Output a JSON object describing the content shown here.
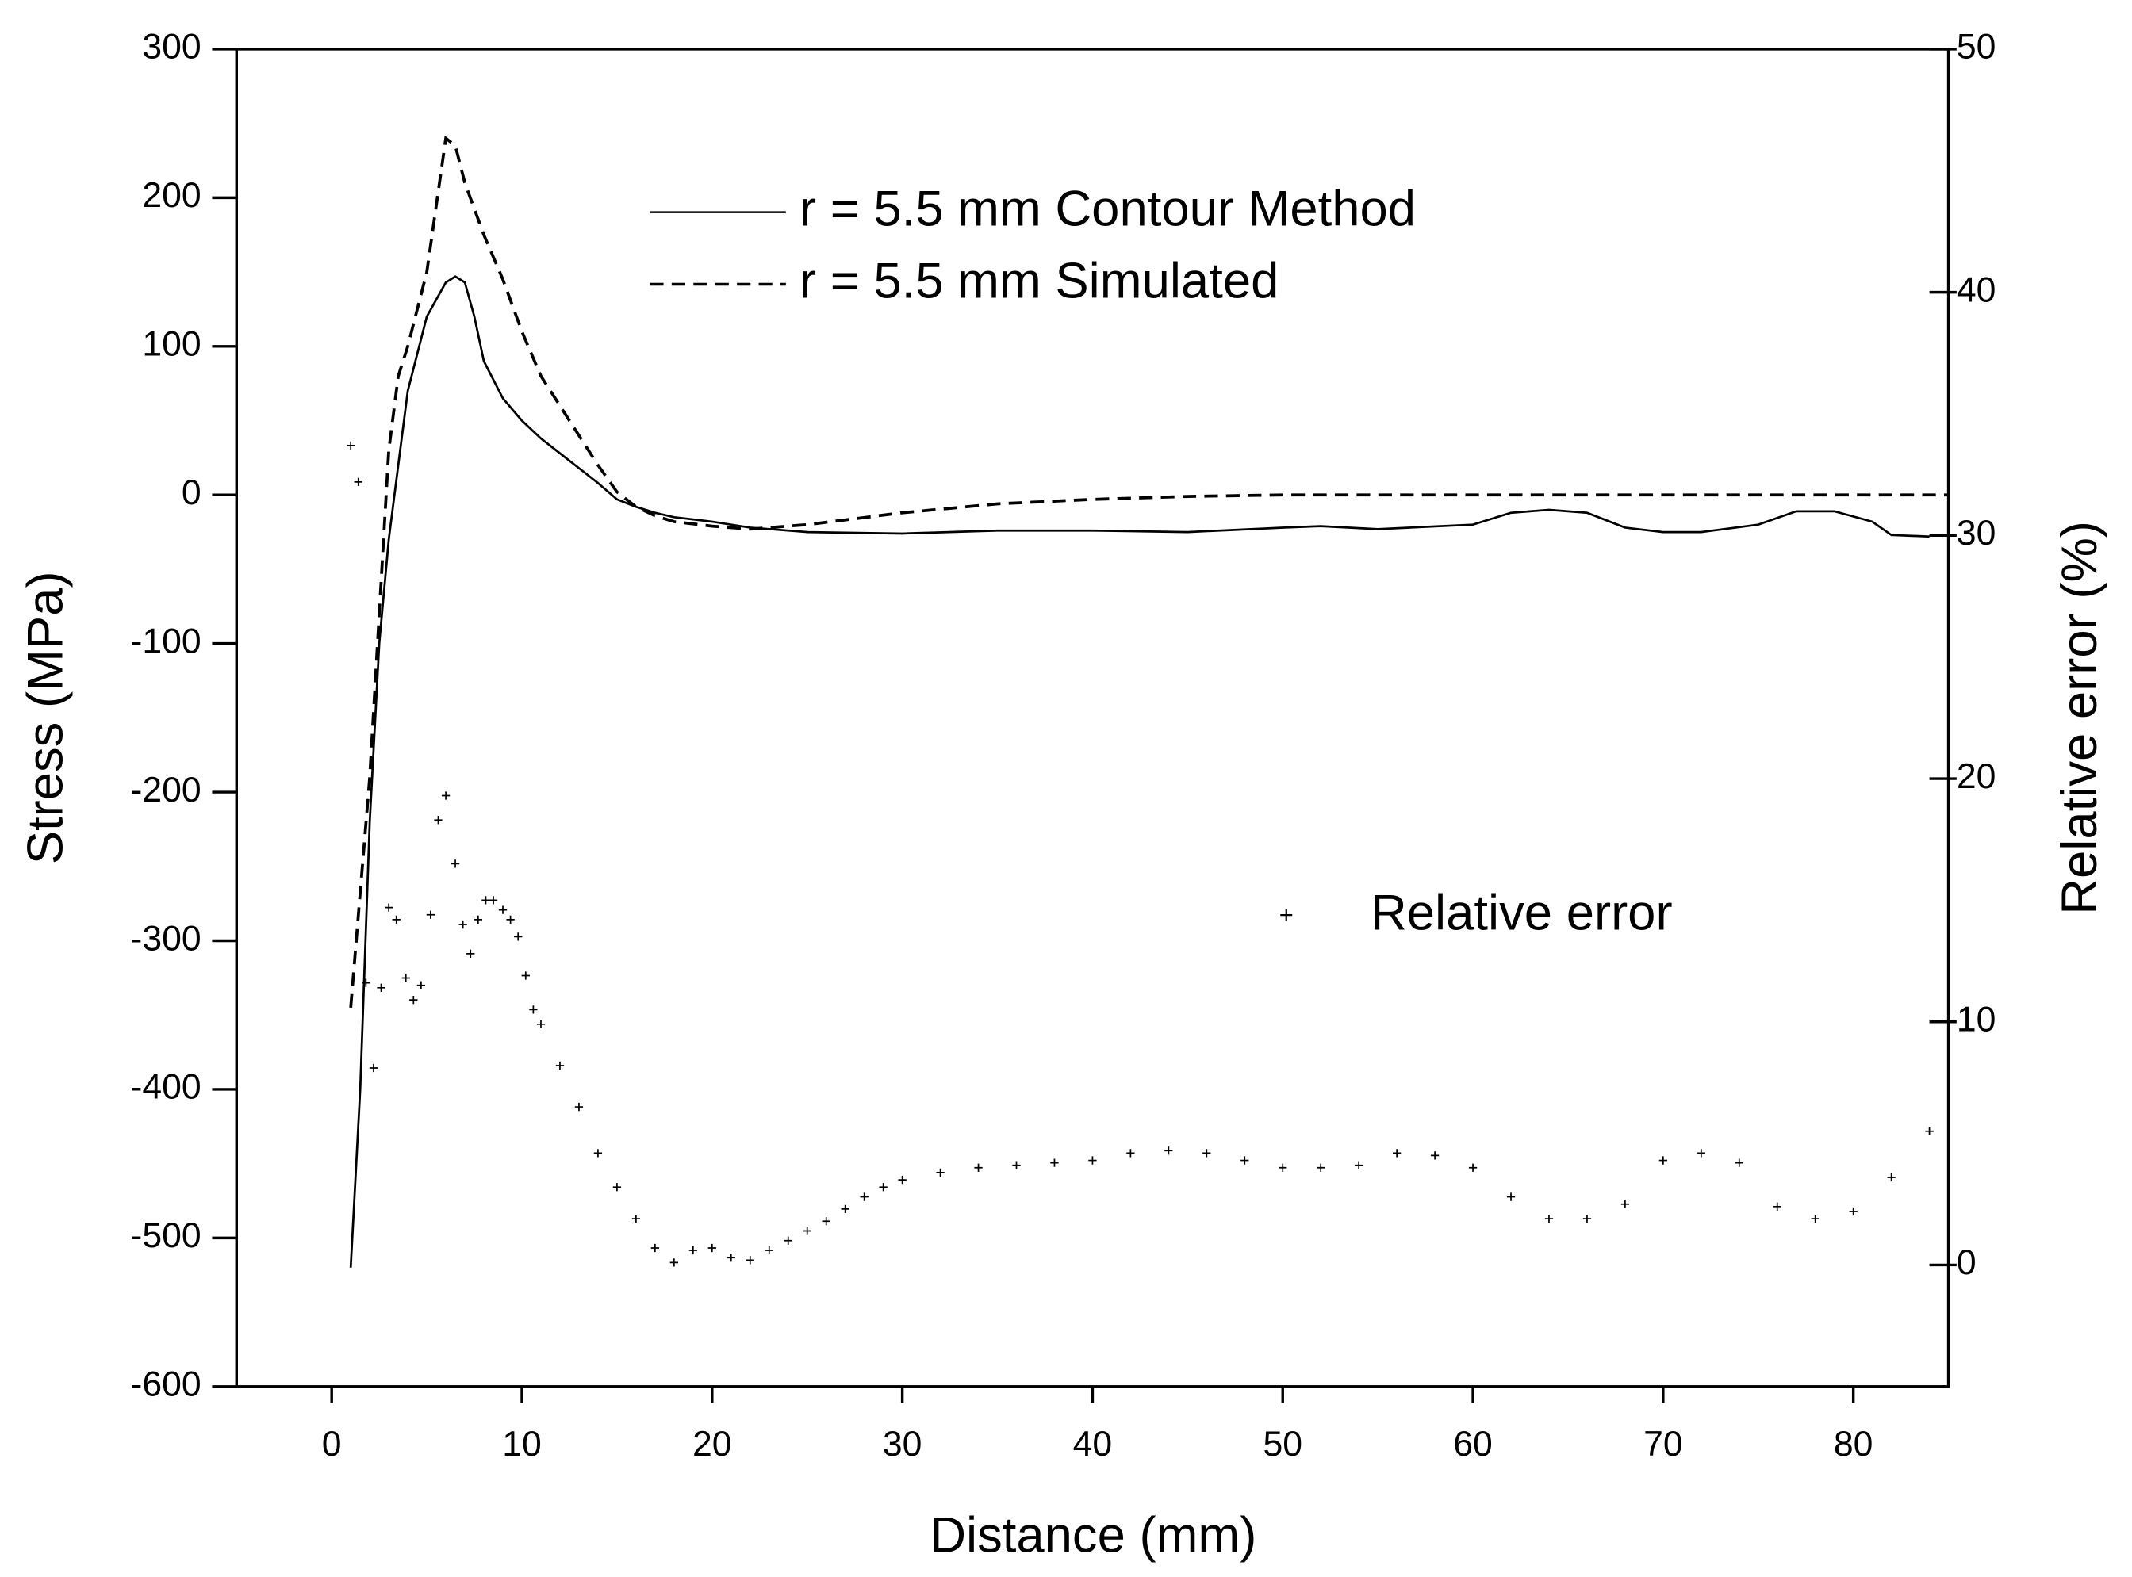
{
  "chart_data": {
    "type": "line",
    "x_label": "Distance (mm)",
    "y_label": "Stress (MPa)",
    "y2_label": "Relative error (%)",
    "xlim": [
      -5,
      85
    ],
    "xticks": [
      0,
      10,
      20,
      30,
      40,
      50,
      60,
      70,
      80
    ],
    "ylim": [
      -600,
      300
    ],
    "yticks": [
      -600,
      -500,
      -400,
      -300,
      -200,
      -100,
      0,
      100,
      200,
      300
    ],
    "y2lim": [
      -5,
      50
    ],
    "y2ticks": [
      0,
      10,
      20,
      30,
      40,
      50
    ],
    "series": [
      {
        "name": "r = 5.5 mm Contour Method",
        "color": "#000000",
        "style": "solid",
        "x": [
          1,
          1.5,
          2,
          2.5,
          3,
          3.5,
          4,
          5,
          6,
          6.5,
          7,
          7.5,
          8,
          9,
          10,
          11,
          12,
          13,
          14,
          15,
          16,
          17,
          18,
          20,
          22,
          25,
          30,
          35,
          40,
          45,
          50,
          52,
          55,
          60,
          62,
          64,
          66,
          68,
          70,
          72,
          75,
          77,
          79,
          81,
          82,
          84
        ],
        "values": [
          -520,
          -400,
          -220,
          -100,
          -30,
          20,
          70,
          120,
          143,
          147,
          143,
          120,
          90,
          65,
          50,
          38,
          28,
          18,
          8,
          -3,
          -8,
          -12,
          -15,
          -18,
          -22,
          -25,
          -26,
          -24,
          -24,
          -25,
          -22,
          -21,
          -23,
          -20,
          -12,
          -10,
          -12,
          -22,
          -25,
          -25,
          -20,
          -11,
          -11,
          -18,
          -27,
          -28
        ]
      },
      {
        "name": "r = 5.5 mm Simulated",
        "color": "#000000",
        "style": "dashed",
        "x": [
          1,
          2,
          3,
          3.5,
          4,
          5,
          6,
          6.5,
          7,
          8,
          9,
          10,
          11,
          12,
          13,
          14,
          15,
          16,
          17,
          18,
          20,
          22,
          25,
          30,
          35,
          40,
          45,
          50,
          60,
          70,
          85
        ],
        "values": [
          -345,
          -190,
          30,
          80,
          100,
          150,
          240,
          235,
          210,
          175,
          145,
          110,
          80,
          60,
          40,
          20,
          2,
          -8,
          -14,
          -18,
          -21,
          -23,
          -20,
          -12,
          -6,
          -3,
          -1,
          0,
          0,
          0,
          0
        ]
      },
      {
        "name": "Relative error",
        "color": "#000000",
        "style": "markers",
        "axis": "y2",
        "x": [
          1,
          1.4,
          1.8,
          2.2,
          2.6,
          3.0,
          3.4,
          3.9,
          4.3,
          4.7,
          5.2,
          5.6,
          6.0,
          6.5,
          6.9,
          7.3,
          7.7,
          8.1,
          8.5,
          9.0,
          9.4,
          9.8,
          10.2,
          10.6,
          11,
          12,
          13,
          14,
          15,
          16,
          17,
          18,
          19,
          20,
          21,
          22,
          23,
          24,
          25,
          26,
          27,
          28,
          29,
          30,
          32,
          34,
          36,
          38,
          40,
          42,
          44,
          46,
          48,
          50,
          52,
          54,
          56,
          58,
          60,
          62,
          64,
          66,
          68,
          70,
          72,
          74,
          76,
          78,
          80,
          82,
          84
        ],
        "values": [
          33.7,
          32.2,
          11.6,
          8.1,
          11.4,
          14.7,
          14.2,
          11.8,
          10.9,
          11.5,
          14.4,
          18.3,
          19.3,
          16.5,
          14.0,
          12.8,
          14.2,
          15.0,
          15.0,
          14.6,
          14.2,
          13.5,
          11.9,
          10.5,
          9.9,
          8.2,
          6.5,
          4.6,
          3.2,
          1.9,
          0.7,
          0.1,
          0.6,
          0.7,
          0.3,
          0.2,
          0.6,
          1.0,
          1.4,
          1.8,
          2.3,
          2.8,
          3.2,
          3.5,
          3.8,
          4.0,
          4.1,
          4.2,
          4.3,
          4.6,
          4.7,
          4.6,
          4.3,
          4.0,
          4.0,
          4.1,
          4.6,
          4.5,
          4.0,
          2.8,
          1.9,
          1.9,
          2.5,
          4.3,
          4.6,
          4.2,
          2.4,
          1.9,
          2.2,
          3.6,
          5.5
        ]
      }
    ]
  }
}
